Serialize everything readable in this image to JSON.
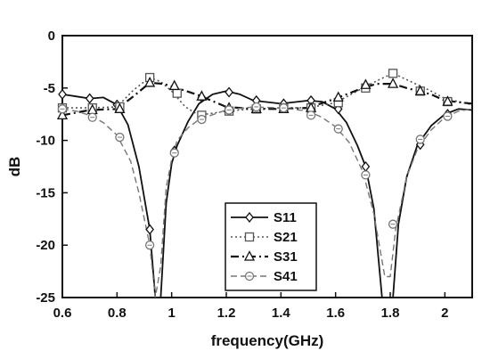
{
  "chart_data": {
    "type": "line",
    "title": "",
    "xlabel": "frequency(GHz)",
    "ylabel": "dB",
    "xlim": [
      0.6,
      2.1
    ],
    "ylim": [
      -25,
      0
    ],
    "xticks": [
      "0.6",
      "0.8",
      "1",
      "1.2",
      "1.4",
      "1.6",
      "1.8",
      "2"
    ],
    "yticks": [
      "0",
      "-5",
      "-10",
      "-15",
      "-20",
      "-25"
    ],
    "grid": false,
    "legend_position": "bottom-center",
    "series": [
      {
        "name": "S11",
        "style": "solid",
        "marker": "diamond",
        "color": "#111111",
        "x": [
          0.6,
          0.65,
          0.7,
          0.75,
          0.8,
          0.84,
          0.88,
          0.9,
          0.92,
          0.94,
          0.96,
          0.98,
          1.0,
          1.02,
          1.06,
          1.1,
          1.15,
          1.2,
          1.25,
          1.3,
          1.4,
          1.5,
          1.55,
          1.6,
          1.64,
          1.68,
          1.71,
          1.74,
          1.77,
          1.79,
          1.81,
          1.83,
          1.86,
          1.9,
          1.95,
          2.0,
          2.05,
          2.1
        ],
        "y": [
          -5.6,
          -5.8,
          -6.0,
          -5.9,
          -6.6,
          -8.5,
          -12.5,
          -15.5,
          -18.5,
          -25,
          -25,
          -16,
          -12.2,
          -10.5,
          -8.2,
          -6.5,
          -5.6,
          -5.3,
          -5.6,
          -6.2,
          -6.5,
          -6.2,
          -6.3,
          -7.0,
          -8.3,
          -10.5,
          -12.5,
          -16.5,
          -25,
          -25,
          -25,
          -18,
          -13.5,
          -10.4,
          -8.6,
          -7.5,
          -7.0,
          -7.1
        ],
        "marker_x": [
          0.6,
          0.7,
          0.8,
          0.92,
          1.01,
          1.11,
          1.21,
          1.31,
          1.41,
          1.51,
          1.61,
          1.71,
          1.91,
          2.01
        ],
        "marker_y": [
          -5.6,
          -6.0,
          -6.6,
          -18.5,
          -11.0,
          -5.9,
          -5.4,
          -6.2,
          -6.5,
          -6.2,
          -7.0,
          -12.5,
          -10.4,
          -7.5
        ]
      },
      {
        "name": "S21",
        "style": "dotted",
        "marker": "square",
        "color": "#555555",
        "x": [
          0.6,
          0.7,
          0.8,
          0.86,
          0.92,
          0.96,
          1.0,
          1.05,
          1.1,
          1.2,
          1.3,
          1.4,
          1.5,
          1.6,
          1.7,
          1.76,
          1.81,
          1.86,
          1.95,
          2.0,
          2.1
        ],
        "y": [
          -6.9,
          -6.9,
          -6.8,
          -5.2,
          -4.0,
          -4.4,
          -5.3,
          -6.8,
          -7.6,
          -7.2,
          -7.0,
          -6.9,
          -6.9,
          -6.4,
          -5.0,
          -4.2,
          -3.6,
          -4.2,
          -5.3,
          -6.0,
          -6.6
        ],
        "marker_x": [
          0.6,
          0.71,
          0.81,
          0.92,
          1.02,
          1.11,
          1.21,
          1.31,
          1.41,
          1.51,
          1.61,
          1.71,
          1.81,
          1.91,
          2.01
        ],
        "marker_y": [
          -6.9,
          -6.9,
          -6.8,
          -4.0,
          -5.5,
          -7.6,
          -7.2,
          -7.0,
          -6.9,
          -6.9,
          -6.4,
          -5.0,
          -3.6,
          -5.3,
          -6.3
        ]
      },
      {
        "name": "S31",
        "style": "dashdot",
        "marker": "triangle",
        "color": "#111111",
        "x": [
          0.6,
          0.7,
          0.8,
          0.86,
          0.92,
          0.97,
          1.02,
          1.1,
          1.2,
          1.3,
          1.4,
          1.5,
          1.6,
          1.7,
          1.75,
          1.81,
          1.86,
          1.95,
          2.0,
          2.1
        ],
        "y": [
          -7.6,
          -7.1,
          -7.0,
          -5.8,
          -4.5,
          -4.6,
          -5.0,
          -5.7,
          -6.8,
          -7.0,
          -7.0,
          -6.9,
          -6.0,
          -5.0,
          -4.6,
          -4.6,
          -5.0,
          -5.6,
          -6.2,
          -6.5
        ],
        "marker_x": [
          0.6,
          0.71,
          0.81,
          0.92,
          1.01,
          1.11,
          1.21,
          1.31,
          1.41,
          1.51,
          1.61,
          1.71,
          1.81,
          1.91,
          2.01
        ],
        "marker_y": [
          -7.6,
          -7.1,
          -7.0,
          -4.5,
          -4.8,
          -5.8,
          -6.9,
          -7.0,
          -7.0,
          -6.9,
          -5.9,
          -4.7,
          -4.6,
          -5.3,
          -6.3
        ]
      },
      {
        "name": "S41",
        "style": "dashed",
        "marker": "circle",
        "color": "#777777",
        "x": [
          0.6,
          0.65,
          0.7,
          0.75,
          0.8,
          0.85,
          0.88,
          0.9,
          0.92,
          0.94,
          0.96,
          0.98,
          1.0,
          1.02,
          1.06,
          1.1,
          1.2,
          1.3,
          1.4,
          1.5,
          1.55,
          1.6,
          1.65,
          1.7,
          1.74,
          1.78,
          1.8,
          1.82,
          1.86,
          1.9,
          1.95,
          2.0,
          2.05,
          2.1
        ],
        "y": [
          -7.0,
          -7.2,
          -7.6,
          -8.3,
          -9.5,
          -12.0,
          -15.0,
          -17.5,
          -20.0,
          -25,
          -22,
          -14.5,
          -11.8,
          -10.0,
          -8.8,
          -8.0,
          -7.1,
          -6.8,
          -6.9,
          -7.2,
          -7.8,
          -8.7,
          -10.2,
          -13.0,
          -17.0,
          -23,
          -23,
          -18.5,
          -13.5,
          -10.8,
          -9.0,
          -7.8,
          -7.2,
          -7.0
        ],
        "marker_x": [
          0.6,
          0.71,
          0.81,
          0.92,
          1.01,
          1.11,
          1.21,
          1.31,
          1.41,
          1.51,
          1.61,
          1.71,
          1.81,
          1.91,
          2.01
        ],
        "marker_y": [
          -7.0,
          -7.8,
          -9.7,
          -20.0,
          -11.2,
          -8.0,
          -7.1,
          -6.8,
          -6.9,
          -7.6,
          -8.9,
          -13.3,
          -18.0,
          -9.9,
          -7.7
        ]
      }
    ]
  }
}
